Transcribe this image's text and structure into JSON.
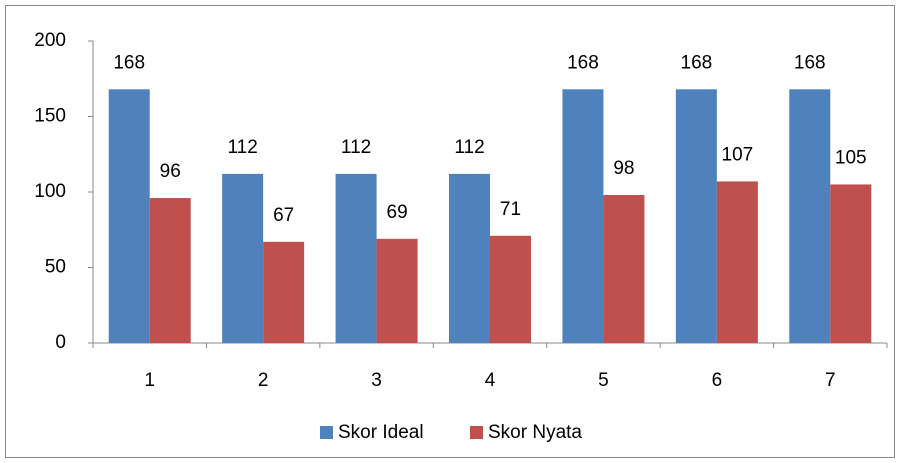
{
  "chart_data": {
    "type": "bar",
    "categories": [
      "1",
      "2",
      "3",
      "4",
      "5",
      "6",
      "7"
    ],
    "series": [
      {
        "name": "Skor Ideal",
        "color": "#4f81bd",
        "values": [
          168,
          112,
          112,
          112,
          168,
          168,
          168
        ]
      },
      {
        "name": "Skor Nyata",
        "color": "#c0504d",
        "values": [
          96,
          67,
          69,
          71,
          98,
          107,
          105
        ]
      }
    ],
    "ylim": [
      0,
      200
    ],
    "yticks": [
      0,
      50,
      100,
      150,
      200
    ],
    "grid": false,
    "legend": "bottom"
  }
}
